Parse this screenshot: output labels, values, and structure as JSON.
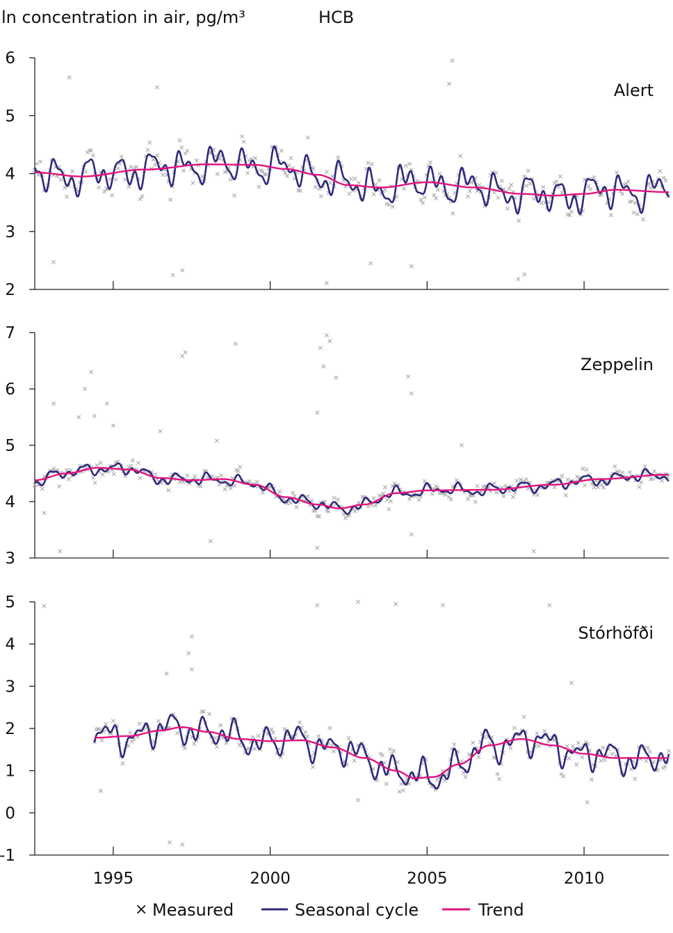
{
  "figure": {
    "ylabel": "ln concentration in air, pg/m³",
    "compound": "HCB"
  },
  "legend": {
    "measured": "Measured",
    "seasonal": "Seasonal cycle",
    "trend": "Trend",
    "measured_symbol": "×"
  },
  "colors": {
    "measured": "#a8a8a8",
    "seasonal": "#2e2a7c",
    "trend": "#e3137e",
    "axis": "#222222"
  },
  "chart_data": [
    {
      "type": "line",
      "station": "Alert",
      "xlim": [
        1992.5,
        2012.7
      ],
      "ylim": [
        2,
        6
      ],
      "yticks": [
        2,
        3,
        4,
        5,
        6
      ],
      "xticks": [
        1995,
        2000,
        2005,
        2010
      ],
      "trend_anchors": [
        [
          1992.5,
          4.02
        ],
        [
          1994,
          3.95
        ],
        [
          1996,
          4.07
        ],
        [
          1998,
          4.16
        ],
        [
          1999.5,
          4.15
        ],
        [
          2000.5,
          4.08
        ],
        [
          2001.5,
          3.98
        ],
        [
          2002.5,
          3.8
        ],
        [
          2003.5,
          3.76
        ],
        [
          2005,
          3.85
        ],
        [
          2006.5,
          3.76
        ],
        [
          2008,
          3.65
        ],
        [
          2009,
          3.62
        ],
        [
          2010,
          3.65
        ],
        [
          2011,
          3.72
        ],
        [
          2012.7,
          3.68
        ]
      ],
      "seasonal_amplitude": 0.35,
      "measured_scatter": 0.3,
      "outliers": [
        [
          1993.6,
          5.66
        ],
        [
          1996.4,
          5.49
        ],
        [
          1993.1,
          2.47
        ],
        [
          1996.9,
          2.25
        ],
        [
          1997.2,
          2.33
        ],
        [
          2001.8,
          2.11
        ],
        [
          2005.8,
          5.95
        ],
        [
          2005.7,
          5.55
        ],
        [
          2007.9,
          2.18
        ],
        [
          2008.1,
          2.26
        ],
        [
          2004.5,
          2.4
        ],
        [
          2003.2,
          2.45
        ]
      ]
    },
    {
      "type": "line",
      "station": "Zeppelin",
      "xlim": [
        1992.5,
        2012.7
      ],
      "ylim": [
        3,
        7
      ],
      "yticks": [
        3,
        4,
        5,
        6,
        7
      ],
      "xticks": [
        1995,
        2000,
        2005,
        2010
      ],
      "trend_anchors": [
        [
          1992.5,
          4.38
        ],
        [
          1993.5,
          4.5
        ],
        [
          1994.5,
          4.6
        ],
        [
          1995.5,
          4.57
        ],
        [
          1996.5,
          4.42
        ],
        [
          1997.5,
          4.38
        ],
        [
          1998.5,
          4.4
        ],
        [
          1999.5,
          4.3
        ],
        [
          2000.5,
          4.08
        ],
        [
          2001.5,
          3.95
        ],
        [
          2002.2,
          3.88
        ],
        [
          2003,
          3.95
        ],
        [
          2004,
          4.15
        ],
        [
          2005,
          4.2
        ],
        [
          2007,
          4.21
        ],
        [
          2009,
          4.3
        ],
        [
          2010.5,
          4.4
        ],
        [
          2012.7,
          4.48
        ]
      ],
      "seasonal_amplitude": 0.12,
      "measured_scatter": 0.14,
      "outliers": [
        [
          1994.3,
          6.3
        ],
        [
          1994.1,
          6.0
        ],
        [
          1994.4,
          5.52
        ],
        [
          1993.1,
          5.74
        ],
        [
          1993.9,
          5.5
        ],
        [
          1994.8,
          5.74
        ],
        [
          1995,
          5.35
        ],
        [
          1997.2,
          6.58
        ],
        [
          1997.3,
          6.65
        ],
        [
          1998.9,
          6.8
        ],
        [
          1996.5,
          5.25
        ],
        [
          1998.3,
          5.08
        ],
        [
          2001.6,
          6.73
        ],
        [
          2001.8,
          6.95
        ],
        [
          2001.9,
          6.85
        ],
        [
          2001.7,
          6.4
        ],
        [
          2002.1,
          6.2
        ],
        [
          2001.5,
          5.58
        ],
        [
          2004.4,
          6.22
        ],
        [
          2004.5,
          5.92
        ],
        [
          2006.1,
          5.0
        ],
        [
          1993.3,
          3.12
        ],
        [
          1998.1,
          3.3
        ],
        [
          2008.4,
          3.12
        ],
        [
          2001.5,
          3.18
        ],
        [
          1992.8,
          3.8
        ],
        [
          2004.5,
          3.42
        ]
      ]
    },
    {
      "type": "line",
      "station": "Stórhöfði",
      "xlim": [
        1992.5,
        2012.7
      ],
      "ylim": [
        -1,
        5
      ],
      "yticks": [
        -1,
        0,
        1,
        2,
        3,
        4,
        5
      ],
      "xticks": [
        1995,
        2000,
        2005,
        2010
      ],
      "data_start": 1994.4,
      "trend_anchors": [
        [
          1994.4,
          1.78
        ],
        [
          1995.5,
          1.82
        ],
        [
          1996.5,
          1.95
        ],
        [
          1997.2,
          2.03
        ],
        [
          1998,
          1.92
        ],
        [
          1999,
          1.75
        ],
        [
          2000,
          1.7
        ],
        [
          2001,
          1.72
        ],
        [
          2002,
          1.55
        ],
        [
          2003,
          1.3
        ],
        [
          2004,
          1.0
        ],
        [
          2004.6,
          0.82
        ],
        [
          2005.2,
          0.85
        ],
        [
          2006,
          1.15
        ],
        [
          2007,
          1.6
        ],
        [
          2008,
          1.75
        ],
        [
          2009,
          1.6
        ],
        [
          2010,
          1.4
        ],
        [
          2011,
          1.3
        ],
        [
          2012.7,
          1.3
        ]
      ],
      "seasonal_amplitude": 0.42,
      "measured_scatter": 0.3,
      "outliers": [
        [
          1992.8,
          4.9
        ],
        [
          1997.5,
          4.18
        ],
        [
          1997.4,
          3.78
        ],
        [
          1997.5,
          3.4
        ],
        [
          1996.7,
          3.3
        ],
        [
          1996.8,
          -0.7
        ],
        [
          1997.2,
          -0.75
        ],
        [
          1994.6,
          0.52
        ],
        [
          2001.5,
          4.92
        ],
        [
          2002.8,
          5.05
        ],
        [
          2004,
          4.95
        ],
        [
          2005.5,
          4.92
        ],
        [
          2008.9,
          4.92
        ],
        [
          2009.6,
          3.08
        ],
        [
          2010.1,
          0.25
        ],
        [
          2002.8,
          0.3
        ]
      ]
    }
  ]
}
